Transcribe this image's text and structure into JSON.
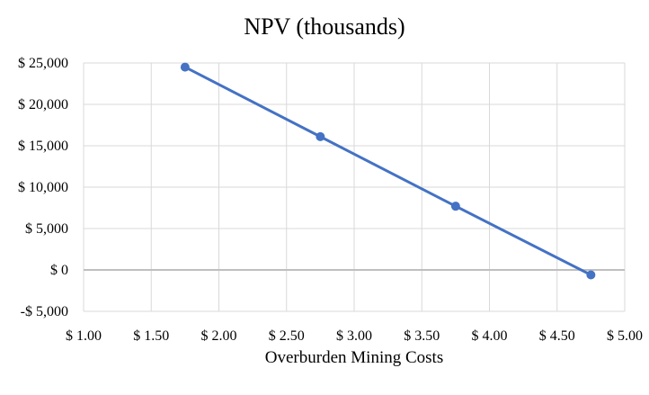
{
  "chart_data": {
    "type": "line",
    "title": "NPV (thousands)",
    "xlabel": "Overburden Mining Costs",
    "ylabel": "",
    "xlim": [
      1.0,
      5.0
    ],
    "ylim": [
      -5000,
      25000
    ],
    "grid": true,
    "x_ticks": [
      1.0,
      1.5,
      2.0,
      2.5,
      3.0,
      3.5,
      4.0,
      4.5,
      5.0
    ],
    "x_tick_labels": [
      "$ 1.00",
      "$ 1.50",
      "$ 2.00",
      "$ 2.50",
      "$ 3.00",
      "$ 3.50",
      "$ 4.00",
      "$ 4.50",
      "$ 5.00"
    ],
    "y_ticks": [
      25000,
      20000,
      15000,
      10000,
      5000,
      0,
      -5000
    ],
    "y_tick_labels": [
      "$ 25,000",
      "$ 20,000",
      "$ 15,000",
      "$ 10,000",
      "$ 5,000",
      "$ 0",
      "-$ 5,000"
    ],
    "series": [
      {
        "name": "NPV (thousands)",
        "color": "#4472c4",
        "x": [
          1.75,
          2.75,
          3.75,
          4.75
        ],
        "y": [
          24500,
          16100,
          7700,
          -600
        ]
      }
    ]
  }
}
